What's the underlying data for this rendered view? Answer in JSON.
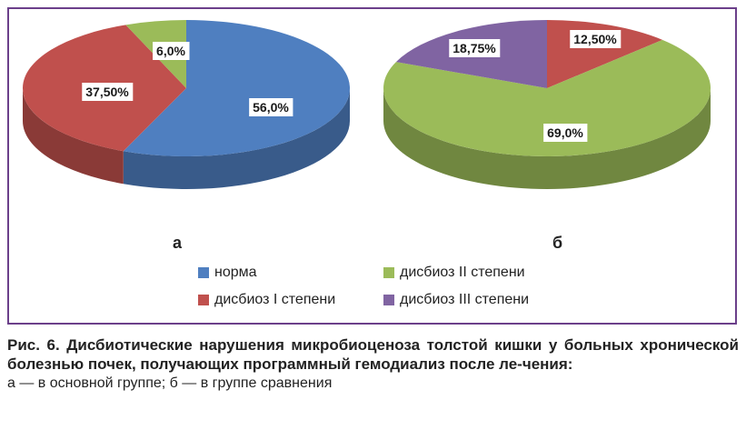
{
  "colors": {
    "norma": "#4f7fc0",
    "dysbiosis_1": "#c0504d",
    "dysbiosis_2": "#9bbb59",
    "dysbiosis_3": "#8064a2",
    "frame": "#6b3f8a"
  },
  "chart_data": [
    {
      "type": "pie",
      "panel_label": "а",
      "slices": [
        {
          "category": "норма",
          "value": 56.0,
          "label": "56,0%",
          "color": "#4f7fc0"
        },
        {
          "category": "дисбиоз I степени",
          "value": 37.5,
          "label": "37,50%",
          "color": "#c0504d"
        },
        {
          "category": "дисбиоз II степени",
          "value": 6.0,
          "label": "6,0%",
          "color": "#9bbb59"
        }
      ]
    },
    {
      "type": "pie",
      "panel_label": "б",
      "slices": [
        {
          "category": "дисбиоз I степени",
          "value": 12.5,
          "label": "12,50%",
          "color": "#c0504d"
        },
        {
          "category": "дисбиоз II степени",
          "value": 69.0,
          "label": "69,0%",
          "color": "#9bbb59"
        },
        {
          "category": "дисбиоз III степени",
          "value": 18.75,
          "label": "18,75%",
          "color": "#8064a2"
        }
      ]
    }
  ],
  "legend": [
    {
      "label": "норма",
      "color": "#4f7fc0"
    },
    {
      "label": "дисбиоз II степени",
      "color": "#9bbb59"
    },
    {
      "label": "дисбиоз I степени",
      "color": "#c0504d"
    },
    {
      "label": "дисбиоз III степени",
      "color": "#8064a2"
    }
  ],
  "caption": {
    "title": "Рис. 6. Дисбиотические нарушения микробиоценоза толстой кишки у больных хронической болезнью почек, получающих программный гемодиализ после ле-чения:",
    "note": "а — в основной группе; б — в группе сравнения"
  }
}
